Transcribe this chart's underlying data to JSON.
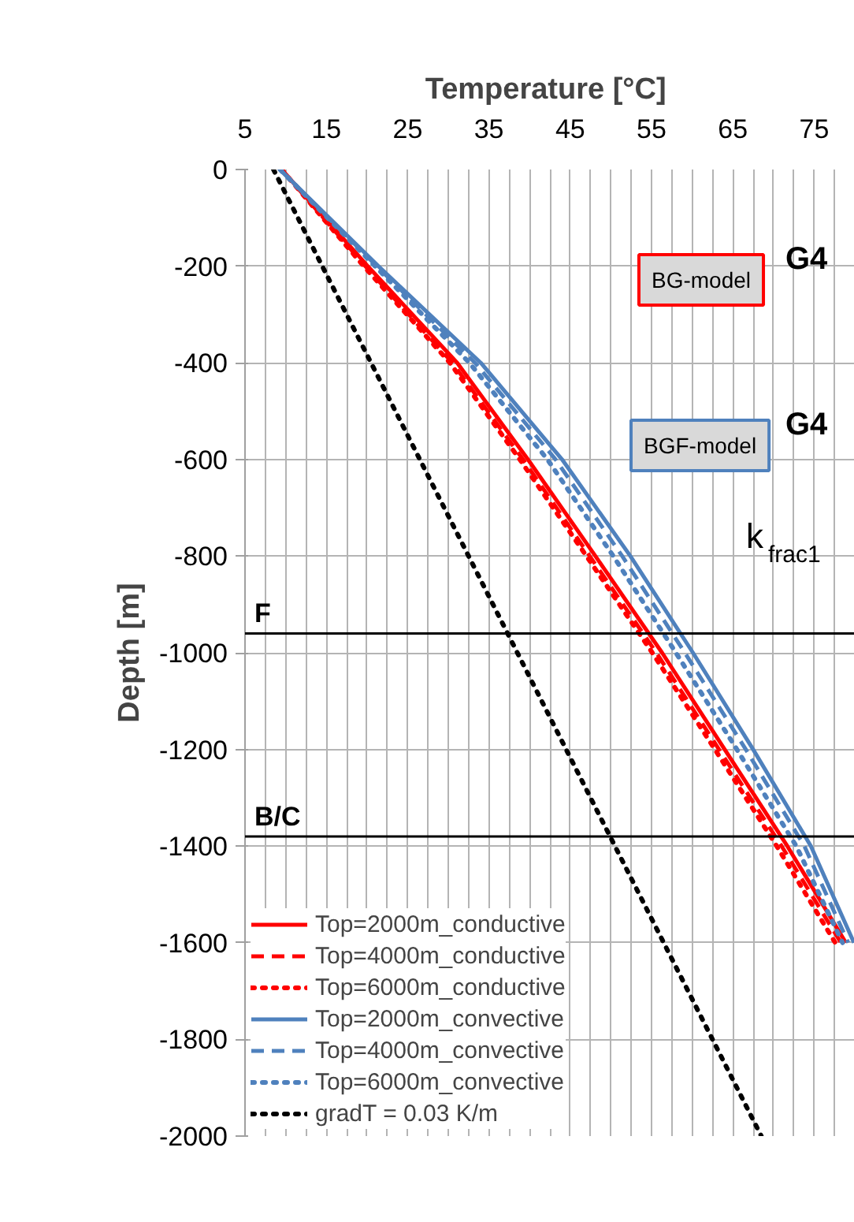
{
  "chart_data": {
    "type": "line",
    "xlabel": "Temperature  [°C]",
    "ylabel": "Depth [m]",
    "xlim": [
      5,
      80
    ],
    "ylim": [
      -2000,
      0
    ],
    "xticks": [
      5,
      {
        "value": 7.5,
        "label": null
      },
      {
        "value": 10,
        "label": null
      },
      {
        "value": 12.5,
        "label": null
      },
      15,
      {
        "value": 17.5,
        "label": null
      },
      {
        "value": 20,
        "label": null
      },
      {
        "value": 22.5,
        "label": null
      },
      25,
      {
        "value": 27.5,
        "label": null
      },
      {
        "value": 30,
        "label": null
      },
      {
        "value": 32.5,
        "label": null
      },
      35,
      {
        "value": 37.5,
        "label": null
      },
      {
        "value": 40,
        "label": null
      },
      {
        "value": 42.5,
        "label": null
      },
      45,
      {
        "value": 47.5,
        "label": null
      },
      {
        "value": 50,
        "label": null
      },
      {
        "value": 52.5,
        "label": null
      },
      55,
      {
        "value": 57.5,
        "label": null
      },
      {
        "value": 60,
        "label": null
      },
      {
        "value": 62.5,
        "label": null
      },
      65,
      {
        "value": 67.5,
        "label": null
      },
      {
        "value": 70,
        "label": null
      },
      {
        "value": 72.5,
        "label": null
      },
      75,
      {
        "value": 77.5,
        "label": null
      }
    ],
    "yticks": [
      0,
      -200,
      -400,
      -600,
      -800,
      -1000,
      -1200,
      -1400,
      -1600,
      -1800,
      -2000
    ],
    "grid": true,
    "legend": "bottom left",
    "series": [
      {
        "name": "Top=2000m_conductive",
        "color": "#ff0000",
        "line_style": "solid",
        "x": [
          9.5,
          20.1,
          31.1,
          39.8,
          48.1,
          56.3,
          64.0,
          71.7,
          78.9
        ],
        "values": [
          0,
          -200,
          -400,
          -600,
          -800,
          -1000,
          -1200,
          -1400,
          -1600
        ]
      },
      {
        "name": "Top=4000m_conductive",
        "color": "#ff0000",
        "line_style": "dashed",
        "x": [
          9.5,
          19.8,
          30.5,
          39.2,
          47.4,
          55.6,
          63.3,
          71.0,
          78.3
        ],
        "values": [
          0,
          -200,
          -400,
          -600,
          -800,
          -1000,
          -1200,
          -1400,
          -1600
        ]
      },
      {
        "name": "Top=6000m_conductive",
        "color": "#ff0000",
        "line_style": "dotted",
        "x": [
          9.5,
          19.6,
          30.2,
          38.8,
          47.0,
          55.1,
          62.8,
          70.4,
          77.6
        ],
        "values": [
          0,
          -200,
          -400,
          -600,
          -800,
          -1000,
          -1200,
          -1400,
          -1600
        ]
      },
      {
        "name": "Top=2000m_convective",
        "color": "#4f81bd",
        "line_style": "solid",
        "x": [
          9.3,
          21.4,
          34.0,
          44.0,
          52.4,
          60.1,
          67.5,
          74.6,
          79.9
        ],
        "values": [
          0,
          -200,
          -400,
          -600,
          -800,
          -1000,
          -1200,
          -1400,
          -1600
        ]
      },
      {
        "name": "Top=4000m_convective",
        "color": "#4f81bd",
        "line_style": "dashed",
        "x": [
          9.3,
          21.2,
          33.3,
          43.2,
          51.4,
          59.1,
          66.6,
          73.8,
          79.2
        ],
        "values": [
          0,
          -200,
          -400,
          -600,
          -800,
          -1000,
          -1200,
          -1400,
          -1600
        ]
      },
      {
        "name": "Top=6000m_convective",
        "color": "#4f81bd",
        "line_style": "dotted",
        "x": [
          9.3,
          21.0,
          32.6,
          42.2,
          50.3,
          58.0,
          65.5,
          72.8,
          78.5
        ],
        "values": [
          0,
          -200,
          -400,
          -600,
          -800,
          -1000,
          -1200,
          -1400,
          -1600
        ]
      },
      {
        "name": "gradT = 0.03 K/m",
        "color": "#000000",
        "line_style": "dotted",
        "x": [
          8.5,
          68.5
        ],
        "values": [
          0,
          -2000
        ]
      }
    ],
    "ref_lines": [
      {
        "axis": "y",
        "value": -960,
        "label": "F",
        "color": "#000000"
      },
      {
        "axis": "y",
        "value": -1380,
        "label": "B/C",
        "color": "#000000"
      }
    ],
    "annotations": [
      "G4",
      "BG-model",
      "G4",
      "BGF-model",
      "k$_{frac1}$"
    ]
  }
}
